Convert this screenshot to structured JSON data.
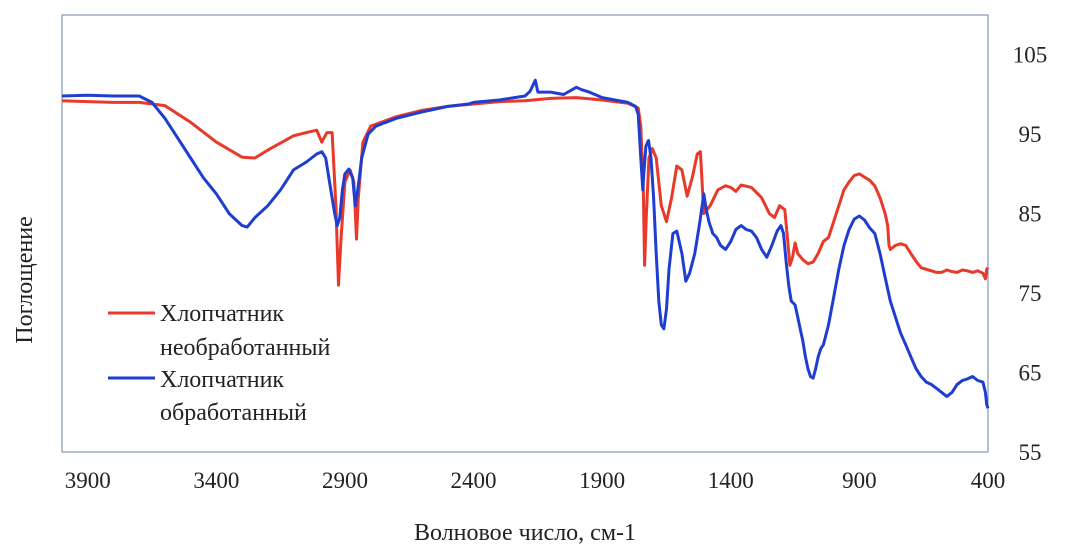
{
  "chart_data": {
    "type": "line",
    "title": "",
    "xlabel": "Волновое число, см-1",
    "ylabel": "Поглощение",
    "xlim": [
      4000,
      400
    ],
    "x_reversed": true,
    "ylim": [
      55,
      110
    ],
    "y_axis_side": "right",
    "grid": false,
    "legend_position": "lower-left",
    "xticks": [
      3900,
      3400,
      2900,
      2400,
      1900,
      1400,
      900,
      400
    ],
    "yticks": [
      55,
      65,
      75,
      85,
      95,
      105
    ],
    "series": [
      {
        "name": "Хлопчатник необработанный",
        "legend_lines": [
          "Хлопчатник",
          "необработанный"
        ],
        "color": "#e8392a",
        "points": [
          [
            4000,
            99.2
          ],
          [
            3900,
            99.1
          ],
          [
            3800,
            99.0
          ],
          [
            3700,
            99.0
          ],
          [
            3600,
            98.6
          ],
          [
            3500,
            96.5
          ],
          [
            3400,
            94.0
          ],
          [
            3300,
            92.1
          ],
          [
            3250,
            92.0
          ],
          [
            3200,
            93.0
          ],
          [
            3100,
            94.8
          ],
          [
            3050,
            95.2
          ],
          [
            3010,
            95.5
          ],
          [
            2990,
            94.0
          ],
          [
            2970,
            95.2
          ],
          [
            2950,
            95.2
          ],
          [
            2935,
            86.0
          ],
          [
            2925,
            76.0
          ],
          [
            2915,
            82.0
          ],
          [
            2900,
            89.0
          ],
          [
            2880,
            90.5
          ],
          [
            2865,
            89.0
          ],
          [
            2855,
            81.8
          ],
          [
            2848,
            87.0
          ],
          [
            2830,
            94.0
          ],
          [
            2800,
            96.0
          ],
          [
            2700,
            97.2
          ],
          [
            2600,
            98.0
          ],
          [
            2500,
            98.5
          ],
          [
            2400,
            98.8
          ],
          [
            2300,
            99.1
          ],
          [
            2200,
            99.2
          ],
          [
            2100,
            99.5
          ],
          [
            2000,
            99.6
          ],
          [
            1900,
            99.3
          ],
          [
            1800,
            98.9
          ],
          [
            1760,
            98.3
          ],
          [
            1750,
            96.0
          ],
          [
            1740,
            88.0
          ],
          [
            1735,
            78.5
          ],
          [
            1728,
            85.0
          ],
          [
            1718,
            92.0
          ],
          [
            1705,
            93.2
          ],
          [
            1690,
            92.0
          ],
          [
            1670,
            86.0
          ],
          [
            1650,
            84.0
          ],
          [
            1630,
            87.0
          ],
          [
            1610,
            91.0
          ],
          [
            1590,
            90.5
          ],
          [
            1570,
            87.2
          ],
          [
            1550,
            89.5
          ],
          [
            1530,
            92.5
          ],
          [
            1518,
            92.8
          ],
          [
            1505,
            85.0
          ],
          [
            1480,
            86.0
          ],
          [
            1450,
            88.0
          ],
          [
            1420,
            88.5
          ],
          [
            1400,
            88.3
          ],
          [
            1380,
            87.8
          ],
          [
            1360,
            88.6
          ],
          [
            1320,
            88.3
          ],
          [
            1280,
            87.0
          ],
          [
            1250,
            85.0
          ],
          [
            1230,
            84.5
          ],
          [
            1210,
            86.0
          ],
          [
            1190,
            85.5
          ],
          [
            1180,
            82.0
          ],
          [
            1170,
            78.5
          ],
          [
            1160,
            79.5
          ],
          [
            1150,
            81.3
          ],
          [
            1140,
            80.0
          ],
          [
            1120,
            79.2
          ],
          [
            1100,
            78.7
          ],
          [
            1080,
            78.9
          ],
          [
            1060,
            80.0
          ],
          [
            1040,
            81.5
          ],
          [
            1020,
            82.0
          ],
          [
            1000,
            84.0
          ],
          [
            980,
            86.0
          ],
          [
            960,
            88.0
          ],
          [
            940,
            89.0
          ],
          [
            920,
            89.8
          ],
          [
            900,
            90.0
          ],
          [
            880,
            89.6
          ],
          [
            860,
            89.2
          ],
          [
            840,
            88.5
          ],
          [
            820,
            87.0
          ],
          [
            800,
            85.0
          ],
          [
            790,
            83.5
          ],
          [
            785,
            81.0
          ],
          [
            780,
            80.5
          ],
          [
            760,
            81.0
          ],
          [
            740,
            81.2
          ],
          [
            720,
            81.0
          ],
          [
            700,
            80.0
          ],
          [
            680,
            79.0
          ],
          [
            660,
            78.2
          ],
          [
            640,
            78.0
          ],
          [
            620,
            77.8
          ],
          [
            600,
            77.6
          ],
          [
            580,
            77.6
          ],
          [
            560,
            77.9
          ],
          [
            540,
            77.7
          ],
          [
            520,
            77.6
          ],
          [
            500,
            77.9
          ],
          [
            480,
            77.8
          ],
          [
            460,
            77.6
          ],
          [
            440,
            77.8
          ],
          [
            420,
            77.5
          ],
          [
            410,
            76.8
          ],
          [
            405,
            78.0
          ],
          [
            400,
            78.2
          ]
        ]
      },
      {
        "name": "Хлопчатник обработанный",
        "legend_lines": [
          "Хлопчатник",
          "обработанный"
        ],
        "color": "#1e3ecf",
        "points": [
          [
            4000,
            99.8
          ],
          [
            3900,
            99.9
          ],
          [
            3800,
            99.8
          ],
          [
            3700,
            99.8
          ],
          [
            3650,
            99.0
          ],
          [
            3600,
            97.0
          ],
          [
            3550,
            94.5
          ],
          [
            3500,
            92.0
          ],
          [
            3450,
            89.5
          ],
          [
            3400,
            87.5
          ],
          [
            3350,
            85.0
          ],
          [
            3300,
            83.5
          ],
          [
            3280,
            83.3
          ],
          [
            3250,
            84.5
          ],
          [
            3200,
            86.0
          ],
          [
            3150,
            88.0
          ],
          [
            3100,
            90.5
          ],
          [
            3050,
            91.5
          ],
          [
            3010,
            92.5
          ],
          [
            2990,
            92.8
          ],
          [
            2975,
            92.0
          ],
          [
            2960,
            89.0
          ],
          [
            2950,
            87.0
          ],
          [
            2940,
            85.0
          ],
          [
            2930,
            83.5
          ],
          [
            2920,
            84.5
          ],
          [
            2910,
            88.0
          ],
          [
            2900,
            90.0
          ],
          [
            2885,
            90.6
          ],
          [
            2870,
            89.5
          ],
          [
            2860,
            86.0
          ],
          [
            2850,
            88.0
          ],
          [
            2835,
            92.0
          ],
          [
            2810,
            95.0
          ],
          [
            2780,
            96.0
          ],
          [
            2700,
            97.0
          ],
          [
            2600,
            97.8
          ],
          [
            2500,
            98.5
          ],
          [
            2420,
            98.8
          ],
          [
            2400,
            99.0
          ],
          [
            2300,
            99.3
          ],
          [
            2200,
            99.8
          ],
          [
            2180,
            100.4
          ],
          [
            2160,
            101.8
          ],
          [
            2150,
            100.3
          ],
          [
            2100,
            100.3
          ],
          [
            2050,
            100.0
          ],
          [
            2000,
            100.9
          ],
          [
            1980,
            100.6
          ],
          [
            1950,
            100.3
          ],
          [
            1900,
            99.6
          ],
          [
            1800,
            99.0
          ],
          [
            1770,
            98.5
          ],
          [
            1760,
            97.5
          ],
          [
            1750,
            92.0
          ],
          [
            1742,
            88.0
          ],
          [
            1738,
            90.0
          ],
          [
            1730,
            93.5
          ],
          [
            1720,
            94.2
          ],
          [
            1710,
            92.0
          ],
          [
            1700,
            87.0
          ],
          [
            1690,
            80.0
          ],
          [
            1680,
            74.0
          ],
          [
            1670,
            71.0
          ],
          [
            1660,
            70.5
          ],
          [
            1650,
            73.0
          ],
          [
            1640,
            78.0
          ],
          [
            1625,
            82.5
          ],
          [
            1610,
            82.8
          ],
          [
            1590,
            80.0
          ],
          [
            1575,
            76.5
          ],
          [
            1560,
            77.5
          ],
          [
            1540,
            80.0
          ],
          [
            1520,
            84.0
          ],
          [
            1505,
            87.5
          ],
          [
            1495,
            85.5
          ],
          [
            1485,
            84.0
          ],
          [
            1470,
            82.5
          ],
          [
            1455,
            82.0
          ],
          [
            1440,
            81.0
          ],
          [
            1420,
            80.5
          ],
          [
            1400,
            81.5
          ],
          [
            1380,
            83.0
          ],
          [
            1360,
            83.5
          ],
          [
            1340,
            83.0
          ],
          [
            1320,
            82.8
          ],
          [
            1300,
            82.0
          ],
          [
            1280,
            80.5
          ],
          [
            1260,
            79.5
          ],
          [
            1240,
            81.0
          ],
          [
            1220,
            82.8
          ],
          [
            1205,
            83.5
          ],
          [
            1195,
            82.5
          ],
          [
            1185,
            79.0
          ],
          [
            1175,
            76.0
          ],
          [
            1165,
            74.0
          ],
          [
            1150,
            73.5
          ],
          [
            1140,
            72.0
          ],
          [
            1130,
            70.5
          ],
          [
            1120,
            69.0
          ],
          [
            1110,
            67.0
          ],
          [
            1100,
            65.5
          ],
          [
            1090,
            64.5
          ],
          [
            1080,
            64.3
          ],
          [
            1070,
            65.5
          ],
          [
            1060,
            67.0
          ],
          [
            1050,
            68.0
          ],
          [
            1040,
            68.5
          ],
          [
            1020,
            71.0
          ],
          [
            1000,
            74.5
          ],
          [
            980,
            78.0
          ],
          [
            960,
            81.0
          ],
          [
            940,
            83.0
          ],
          [
            920,
            84.3
          ],
          [
            900,
            84.7
          ],
          [
            880,
            84.2
          ],
          [
            860,
            83.2
          ],
          [
            840,
            82.5
          ],
          [
            820,
            80.0
          ],
          [
            800,
            77.0
          ],
          [
            780,
            74.0
          ],
          [
            760,
            72.0
          ],
          [
            740,
            70.0
          ],
          [
            720,
            68.5
          ],
          [
            700,
            67.0
          ],
          [
            680,
            65.5
          ],
          [
            660,
            64.5
          ],
          [
            640,
            63.8
          ],
          [
            620,
            63.5
          ],
          [
            600,
            63.0
          ],
          [
            580,
            62.5
          ],
          [
            560,
            62.0
          ],
          [
            540,
            62.5
          ],
          [
            520,
            63.5
          ],
          [
            500,
            64.0
          ],
          [
            480,
            64.2
          ],
          [
            460,
            64.5
          ],
          [
            440,
            64.0
          ],
          [
            420,
            63.8
          ],
          [
            410,
            62.5
          ],
          [
            405,
            61.0
          ],
          [
            400,
            60.5
          ]
        ]
      }
    ]
  }
}
